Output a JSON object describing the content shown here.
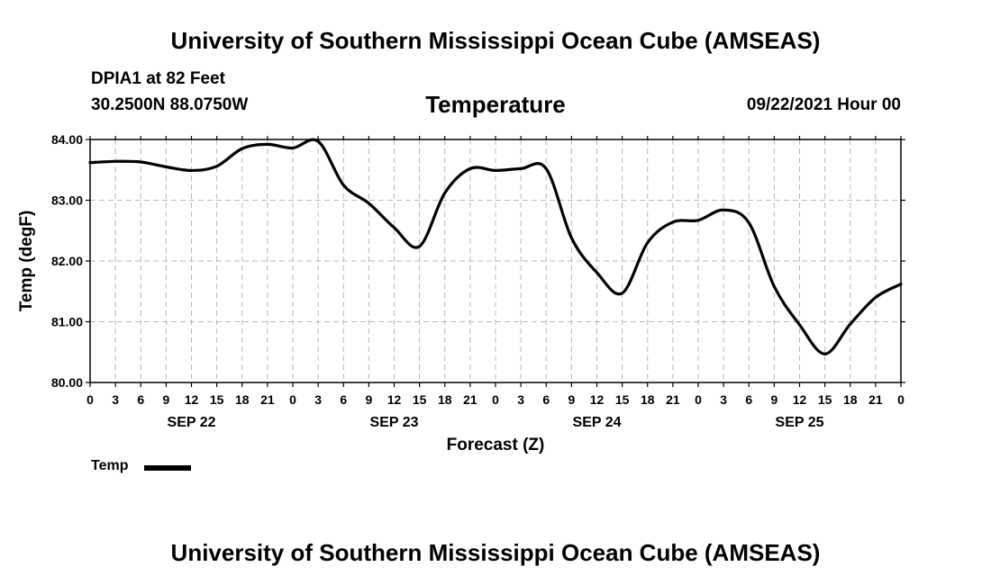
{
  "header": {
    "title": "University of Southern Mississippi Ocean Cube (AMSEAS)",
    "station": "DPIA1 at 82 Feet",
    "coordinates": "30.2500N  88.0750W",
    "variable": "Temperature",
    "datetime": "09/22/2021 Hour 00"
  },
  "footer": {
    "title": "University of Southern Mississippi Ocean Cube (AMSEAS)"
  },
  "legend": {
    "label": "Temp",
    "color": "#000000"
  },
  "chart_data": {
    "type": "line",
    "title": "Temperature",
    "xlabel": "Forecast (Z)",
    "ylabel": "Temp (degF)",
    "ylim": [
      80.0,
      84.0
    ],
    "yticks": [
      "80.00",
      "81.00",
      "82.00",
      "83.00",
      "84.00"
    ],
    "xlim_hours": [
      0,
      96
    ],
    "xtick_hours": [
      0,
      3,
      6,
      9,
      12,
      15,
      18,
      21,
      24,
      27,
      30,
      33,
      36,
      39,
      42,
      45,
      48,
      51,
      54,
      57,
      60,
      63,
      66,
      69,
      72,
      75,
      78,
      81,
      84,
      87,
      90,
      93,
      96
    ],
    "xtick_labels": [
      "0",
      "3",
      "6",
      "9",
      "12",
      "15",
      "18",
      "21",
      "0",
      "3",
      "6",
      "9",
      "12",
      "15",
      "18",
      "21",
      "0",
      "3",
      "6",
      "9",
      "12",
      "15",
      "18",
      "21",
      "0",
      "3",
      "6",
      "9",
      "12",
      "15",
      "18",
      "21",
      "0"
    ],
    "date_labels": [
      {
        "hour": 12,
        "label": "SEP 22"
      },
      {
        "hour": 36,
        "label": "SEP 23"
      },
      {
        "hour": 60,
        "label": "SEP 24"
      },
      {
        "hour": 84,
        "label": "SEP 25"
      }
    ],
    "grid": true,
    "legend_position": "bottom-left",
    "series": [
      {
        "name": "Temp",
        "color": "#000000",
        "x": [
          0,
          3,
          6,
          9,
          12,
          15,
          18,
          21,
          24,
          27,
          30,
          33,
          36,
          39,
          42,
          45,
          48,
          51,
          54,
          57,
          60,
          63,
          66,
          69,
          72,
          75,
          78,
          81,
          84,
          87,
          90,
          93,
          96
        ],
        "y": [
          83.62,
          83.64,
          83.63,
          83.55,
          83.49,
          83.56,
          83.85,
          83.92,
          83.86,
          83.97,
          83.25,
          82.95,
          82.55,
          82.24,
          83.12,
          83.52,
          83.49,
          83.52,
          83.52,
          82.38,
          81.81,
          81.47,
          82.3,
          82.64,
          82.67,
          82.84,
          82.63,
          81.58,
          80.95,
          80.47,
          80.96,
          81.4,
          81.62
        ]
      }
    ]
  }
}
